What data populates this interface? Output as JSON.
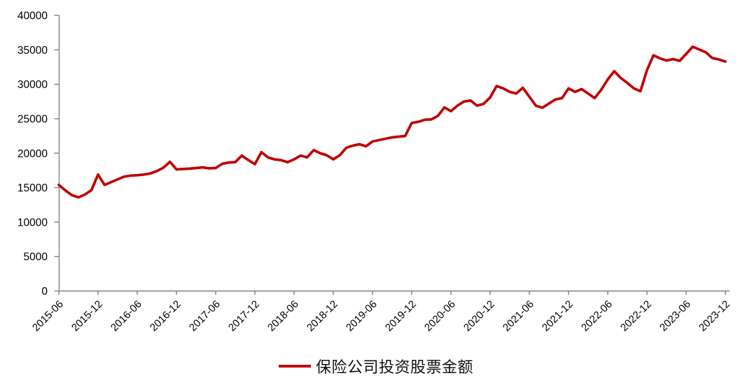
{
  "chart": {
    "legend": {
      "label": "保险公司投资股票金额",
      "line_color": "#c00000"
    },
    "colors": {
      "axis": "#808080",
      "text": "#000000",
      "background": "#ffffff",
      "series": "#c00000"
    }
  },
  "chart_data": {
    "type": "line",
    "title": "",
    "xlabel": "",
    "ylabel": "",
    "ylim": [
      0,
      40000
    ],
    "y_tick_step": 5000,
    "yticks": [
      "0",
      "5000",
      "10000",
      "15000",
      "20000",
      "25000",
      "30000",
      "35000",
      "40000"
    ],
    "x_tick_interval": 6,
    "xticks_shown": [
      "2015-06",
      "2015-12",
      "2016-06",
      "2016-12",
      "2017-06",
      "2017-12",
      "2018-06",
      "2018-12",
      "2019-06",
      "2019-12",
      "2020-06",
      "2020-12",
      "2021-06",
      "2021-12",
      "2022-06",
      "2022-12",
      "2023-06",
      "2023-12"
    ],
    "grid": false,
    "legend_position": "bottom",
    "series": [
      {
        "name": "保险公司投资股票金额",
        "color": "#c00000",
        "x": [
          "2015-06",
          "2015-07",
          "2015-08",
          "2015-09",
          "2015-10",
          "2015-11",
          "2015-12",
          "2016-01",
          "2016-02",
          "2016-03",
          "2016-04",
          "2016-05",
          "2016-06",
          "2016-07",
          "2016-08",
          "2016-09",
          "2016-10",
          "2016-11",
          "2016-12",
          "2017-01",
          "2017-02",
          "2017-03",
          "2017-04",
          "2017-05",
          "2017-06",
          "2017-07",
          "2017-08",
          "2017-09",
          "2017-10",
          "2017-11",
          "2017-12",
          "2018-01",
          "2018-02",
          "2018-03",
          "2018-04",
          "2018-05",
          "2018-06",
          "2018-07",
          "2018-08",
          "2018-09",
          "2018-10",
          "2018-11",
          "2018-12",
          "2019-01",
          "2019-02",
          "2019-03",
          "2019-04",
          "2019-05",
          "2019-06",
          "2019-07",
          "2019-08",
          "2019-09",
          "2019-10",
          "2019-11",
          "2019-12",
          "2020-01",
          "2020-02",
          "2020-03",
          "2020-04",
          "2020-05",
          "2020-06",
          "2020-07",
          "2020-08",
          "2020-09",
          "2020-10",
          "2020-11",
          "2020-12",
          "2021-01",
          "2021-02",
          "2021-03",
          "2021-04",
          "2021-05",
          "2021-06",
          "2021-07",
          "2021-08",
          "2021-09",
          "2021-10",
          "2021-11",
          "2021-12",
          "2022-01",
          "2022-02",
          "2022-03",
          "2022-04",
          "2022-05",
          "2022-06",
          "2022-07",
          "2022-08",
          "2022-09",
          "2022-10",
          "2022-11",
          "2022-12",
          "2023-01",
          "2023-02",
          "2023-03",
          "2023-04",
          "2023-05",
          "2023-06",
          "2023-07",
          "2023-08",
          "2023-09",
          "2023-10",
          "2023-11",
          "2023-12"
        ],
        "values": [
          15400,
          14600,
          13900,
          13600,
          14000,
          14650,
          16900,
          15400,
          15800,
          16200,
          16600,
          16750,
          16800,
          16900,
          17050,
          17400,
          17900,
          18750,
          17650,
          17700,
          17750,
          17850,
          17950,
          17800,
          17850,
          18450,
          18650,
          18700,
          19650,
          19000,
          18400,
          20150,
          19400,
          19100,
          19000,
          18700,
          19100,
          19650,
          19400,
          20450,
          20000,
          19700,
          19100,
          19700,
          20800,
          21100,
          21300,
          21000,
          21700,
          21900,
          22100,
          22300,
          22400,
          22500,
          24400,
          24550,
          24850,
          24900,
          25400,
          26650,
          26100,
          26900,
          27500,
          27650,
          26900,
          27150,
          28100,
          29750,
          29400,
          28900,
          28650,
          29500,
          28200,
          26900,
          26600,
          27200,
          27800,
          28000,
          29400,
          28900,
          29300,
          28650,
          28000,
          29200,
          30700,
          31900,
          30900,
          30200,
          29400,
          29000,
          32050,
          34200,
          33750,
          33450,
          33650,
          33400,
          34400,
          35450,
          35050,
          34650,
          33800,
          33600,
          33300
        ]
      }
    ]
  }
}
